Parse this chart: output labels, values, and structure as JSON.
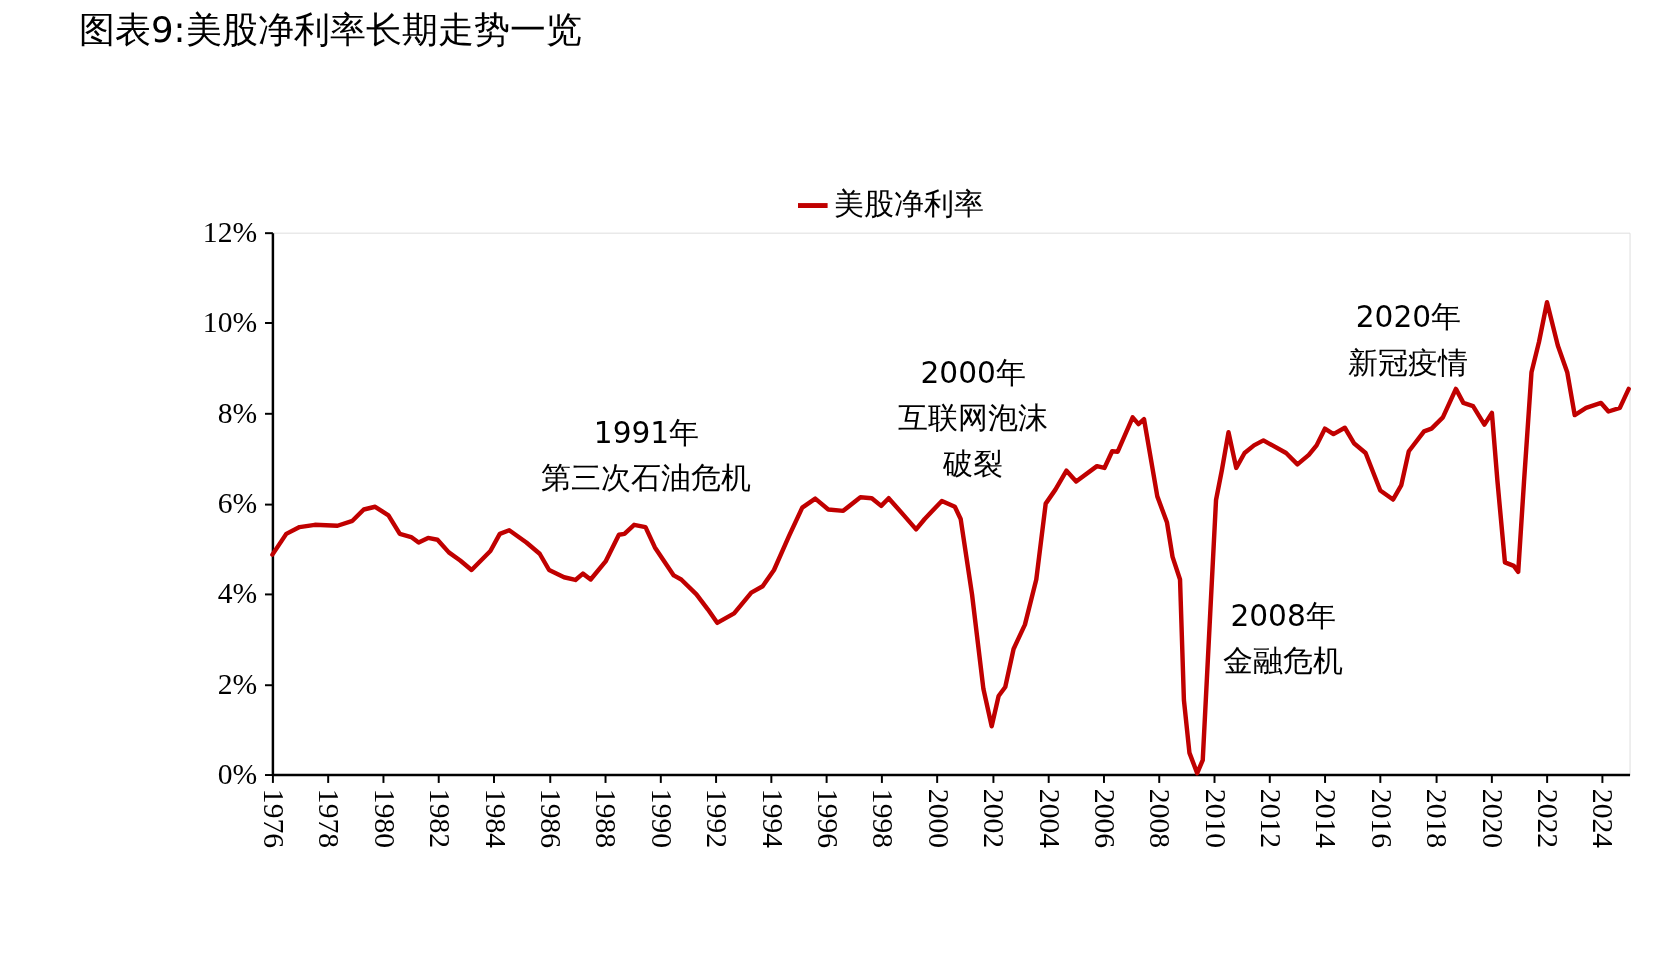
{
  "chart_data": {
    "type": "line",
    "title": "图表9:美股净利率长期走势一览",
    "xlim": [
      1976,
      2025
    ],
    "xticks": [
      1976,
      1978,
      1980,
      1982,
      1984,
      1986,
      1988,
      1990,
      1992,
      1994,
      1996,
      1998,
      2000,
      2002,
      2004,
      2006,
      2008,
      2010,
      2012,
      2014,
      2016,
      2018,
      2020,
      2022,
      2024
    ],
    "ylim": [
      0,
      12
    ],
    "yticks": [
      {
        "value": 0,
        "label": "0%"
      },
      {
        "value": 2,
        "label": "2%"
      },
      {
        "value": 4,
        "label": "4%"
      },
      {
        "value": 6,
        "label": "6%"
      },
      {
        "value": 8,
        "label": "8%"
      },
      {
        "value": 10,
        "label": "10%"
      },
      {
        "value": 12,
        "label": "12%"
      }
    ],
    "grid": false,
    "legend": "top",
    "marker": "none",
    "line_style": "solid",
    "series": [
      {
        "name": "美股净利率",
        "color": "#c00000",
        "x": [
          1976.0,
          1976.5,
          1976.98,
          1977.53,
          1978.35,
          1978.89,
          1979.3,
          1979.71,
          1980.19,
          1980.6,
          1981.01,
          1981.28,
          1981.62,
          1981.96,
          1982.37,
          1982.78,
          1983.19,
          1983.87,
          1984.21,
          1984.55,
          1985.17,
          1985.65,
          1985.99,
          1986.53,
          1986.94,
          1987.21,
          1987.49,
          1988.03,
          1988.51,
          1988.71,
          1989.06,
          1989.47,
          1989.81,
          1990.49,
          1990.76,
          1991.31,
          1991.72,
          1992.06,
          1992.67,
          1993.29,
          1993.7,
          1994.11,
          1994.65,
          1995.13,
          1995.6,
          1996.07,
          1996.61,
          1997.23,
          1997.64,
          1997.98,
          1998.25,
          1998.8,
          1999.24,
          1999.55,
          2000.17,
          2000.64,
          2000.85,
          2001.26,
          2001.67,
          2001.97,
          2002.22,
          2002.46,
          2002.76,
          2003.17,
          2003.58,
          2003.92,
          2004.27,
          2004.67,
          2005.02,
          2005.77,
          2006.04,
          2006.32,
          2006.52,
          2007.06,
          2007.27,
          2007.47,
          2007.95,
          2008.3,
          2008.5,
          2008.77,
          2008.91,
          2009.11,
          2009.39,
          2009.59,
          2009.86,
          2010.07,
          2010.28,
          2010.52,
          2010.8,
          2011.1,
          2011.44,
          2011.78,
          2012.6,
          2013.01,
          2013.42,
          2013.7,
          2014.0,
          2014.31,
          2014.72,
          2015.06,
          2015.47,
          2016.0,
          2016.46,
          2016.76,
          2017.03,
          2017.58,
          2017.85,
          2018.26,
          2018.73,
          2019.0,
          2019.35,
          2019.76,
          2020.03,
          2020.23,
          2020.5,
          2020.82,
          2020.98,
          2021.19,
          2021.46,
          2021.73,
          2022.02,
          2022.41,
          2022.75,
          2023.02,
          2023.43,
          2023.97,
          2024.24,
          2024.65,
          2024.97
        ],
        "values": [
          4.87,
          5.33,
          5.48,
          5.53,
          5.51,
          5.62,
          5.87,
          5.93,
          5.74,
          5.33,
          5.26,
          5.14,
          5.24,
          5.2,
          4.92,
          4.74,
          4.53,
          4.95,
          5.33,
          5.41,
          5.14,
          4.89,
          4.53,
          4.37,
          4.31,
          4.45,
          4.32,
          4.72,
          5.31,
          5.33,
          5.53,
          5.48,
          5.03,
          4.41,
          4.32,
          3.99,
          3.66,
          3.36,
          3.57,
          4.03,
          4.17,
          4.53,
          5.28,
          5.91,
          6.11,
          5.87,
          5.84,
          6.14,
          6.12,
          5.95,
          6.12,
          5.74,
          5.43,
          5.66,
          6.06,
          5.93,
          5.66,
          3.99,
          1.9,
          1.07,
          1.74,
          1.94,
          2.78,
          3.32,
          4.32,
          6.0,
          6.31,
          6.73,
          6.49,
          6.83,
          6.79,
          7.16,
          7.15,
          7.91,
          7.76,
          7.87,
          6.16,
          5.58,
          4.82,
          4.32,
          1.65,
          0.48,
          0.03,
          0.32,
          3.57,
          6.08,
          6.74,
          7.58,
          6.79,
          7.12,
          7.29,
          7.4,
          7.12,
          6.87,
          7.08,
          7.29,
          7.66,
          7.54,
          7.68,
          7.33,
          7.12,
          6.29,
          6.09,
          6.41,
          7.16,
          7.6,
          7.66,
          7.91,
          8.54,
          8.23,
          8.16,
          7.75,
          8.01,
          6.5,
          4.7,
          4.62,
          4.49,
          6.49,
          8.91,
          9.58,
          10.46,
          9.5,
          8.91,
          7.96,
          8.12,
          8.23,
          8.04,
          8.12,
          8.54
        ]
      }
    ],
    "annotations": [
      "1991年第三次石油危机",
      "2000年互联网泡沫破裂",
      "2008年金融危机",
      "2020年新冠疫情"
    ]
  }
}
